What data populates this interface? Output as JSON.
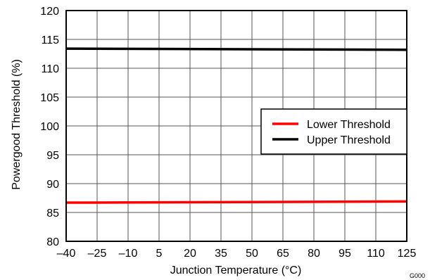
{
  "chart_data": {
    "type": "line",
    "title": "",
    "xlabel": "Junction Temperature (°C)",
    "ylabel": "Powergood Threshold (%)",
    "xlim": [
      -40,
      125
    ],
    "ylim": [
      80,
      120
    ],
    "x_ticks": [
      "–40",
      "–25",
      "–10",
      "5",
      "20",
      "35",
      "50",
      "65",
      "80",
      "95",
      "110",
      "125"
    ],
    "x_tick_values": [
      -40,
      -25,
      -10,
      5,
      20,
      35,
      50,
      65,
      80,
      95,
      110,
      125
    ],
    "y_ticks": [
      "120",
      "115",
      "110",
      "105",
      "100",
      "95",
      "90",
      "85",
      "80"
    ],
    "y_tick_values": [
      120,
      115,
      110,
      105,
      100,
      95,
      90,
      85,
      80
    ],
    "grid": true,
    "legend_position": "right",
    "series": [
      {
        "name": "Lower Threshold",
        "color": "#ff0000",
        "x": [
          -40,
          125
        ],
        "y": [
          86.7,
          86.9
        ]
      },
      {
        "name": "Upper Threshold",
        "color": "#000000",
        "x": [
          -40,
          125
        ],
        "y": [
          113.4,
          113.2
        ]
      }
    ]
  },
  "figure_code": "G000"
}
